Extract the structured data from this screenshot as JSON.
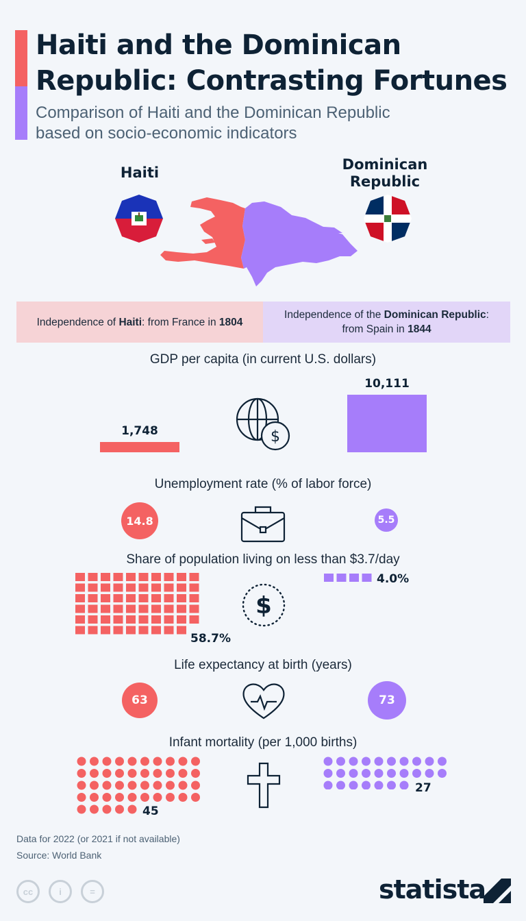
{
  "header": {
    "title_line1": "Haiti and the Dominican",
    "title_line2": "Republic: Contrasting Fortunes",
    "subtitle_line1": "Comparison of Haiti and the Dominican Republic",
    "subtitle_line2": "based on socio-economic indicators"
  },
  "countries": {
    "haiti": {
      "name": "Haiti",
      "color": "#f46262"
    },
    "dr": {
      "name_line1": "Dominican",
      "name_line2": "Republic",
      "color": "#a67dfa"
    }
  },
  "independence": {
    "haiti": {
      "prefix": "Independence of ",
      "country": "Haiti",
      "mid": ": from France in ",
      "year": "1804",
      "bg": "#f6d3d6"
    },
    "dr": {
      "prefix": "Independence of the ",
      "country": "Dominican Republic",
      "mid": ":",
      "line2": "from Spain in ",
      "year": "1844",
      "bg": "#e2d6f8"
    }
  },
  "sections": {
    "gdp": "GDP per capita (in current U.S. dollars)",
    "unemployment": "Unemployment rate (% of labor force)",
    "poverty": "Share of population living on less than $3.7/day",
    "life": "Life expectancy at birth (years)",
    "infant": "Infant mortality (per 1,000 births)"
  },
  "icons": {
    "gdp": "globe-dollar-icon",
    "unemployment": "briefcase-icon",
    "poverty": "dollar-coin-icon",
    "life": "heartbeat-icon",
    "infant": "cross-icon"
  },
  "chart_data": [
    {
      "type": "bar",
      "title": "GDP per capita (in current U.S. dollars)",
      "categories": [
        "Haiti",
        "Dominican Republic"
      ],
      "values": [
        1748,
        10111
      ],
      "labels": [
        "1,748",
        "10,111"
      ]
    },
    {
      "type": "bubble",
      "title": "Unemployment rate (% of labor force)",
      "categories": [
        "Haiti",
        "Dominican Republic"
      ],
      "values": [
        14.8,
        5.5
      ],
      "labels": [
        "14.8",
        "5.5"
      ]
    },
    {
      "type": "waffle",
      "title": "Share of population living on less than $3.7/day",
      "categories": [
        "Haiti",
        "Dominican Republic"
      ],
      "values": [
        58.7,
        4.0
      ],
      "labels": [
        "58.7%",
        "4.0%"
      ]
    },
    {
      "type": "bubble",
      "title": "Life expectancy at birth (years)",
      "categories": [
        "Haiti",
        "Dominican Republic"
      ],
      "values": [
        63,
        73
      ],
      "labels": [
        "63",
        "73"
      ]
    },
    {
      "type": "dots",
      "title": "Infant mortality (per 1,000 births)",
      "categories": [
        "Haiti",
        "Dominican Republic"
      ],
      "values": [
        45,
        27
      ],
      "labels": [
        "45",
        "27"
      ]
    }
  ],
  "footer": {
    "note": "Data for 2022 (or 2021 if not available)",
    "source": "Source: World Bank",
    "brand": "statista",
    "license": [
      "cc",
      "i",
      "="
    ]
  }
}
